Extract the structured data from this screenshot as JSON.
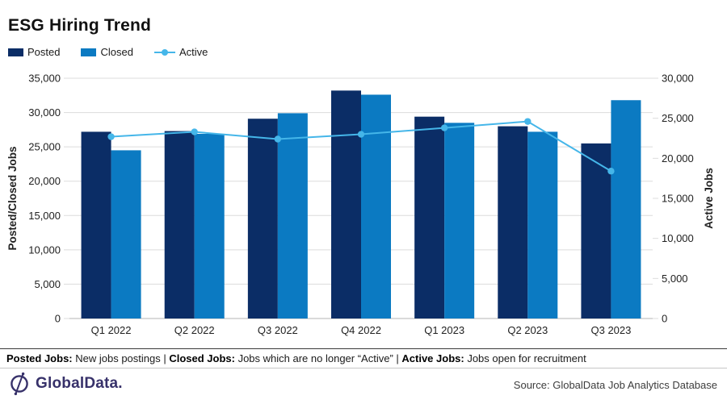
{
  "title": "ESG Hiring Trend",
  "legend": [
    {
      "label": "Posted",
      "color": "#0b2d66",
      "marker": "swatch"
    },
    {
      "label": "Closed",
      "color": "#0b7ac2",
      "marker": "swatch"
    },
    {
      "label": "Active",
      "color": "#45b6e9",
      "marker": "line"
    }
  ],
  "chart_data": {
    "type": "bar",
    "title": "ESG Hiring Trend",
    "categories": [
      "Q1 2022",
      "Q2 2022",
      "Q3 2022",
      "Q4 2022",
      "Q1 2023",
      "Q2 2023",
      "Q3 2023"
    ],
    "series": [
      {
        "name": "Posted",
        "type": "bar",
        "axis": "left",
        "color": "#0b2d66",
        "values": [
          27200,
          27300,
          29100,
          33200,
          29400,
          28000,
          25500
        ]
      },
      {
        "name": "Closed",
        "type": "bar",
        "axis": "left",
        "color": "#0b7ac2",
        "values": [
          24500,
          26900,
          29900,
          32600,
          28500,
          27200,
          31800
        ]
      },
      {
        "name": "Active",
        "type": "line",
        "axis": "right",
        "color": "#45b6e9",
        "values": [
          22700,
          23300,
          22400,
          23000,
          23800,
          24600,
          18400
        ]
      }
    ],
    "left_axis": {
      "label": "Posted/Closed Jobs",
      "min": 0,
      "max": 35000,
      "step": 5000
    },
    "right_axis": {
      "label": "Active Jobs",
      "min": 0,
      "max": 30000,
      "step": 5000
    },
    "grid": true,
    "legend_position": "top-left"
  },
  "note": {
    "segments": [
      {
        "bold": "Posted Jobs:",
        "text": " New jobs postings | "
      },
      {
        "bold": "Closed Jobs:",
        "text": " Jobs which are no longer “Active” | "
      },
      {
        "bold": "Active Jobs:",
        "text": " Jobs open for recruitment"
      }
    ]
  },
  "footer": {
    "brand": "GlobalData.",
    "brand_color": "#37316a",
    "source": "Source: GlobalData Job Analytics Database"
  }
}
